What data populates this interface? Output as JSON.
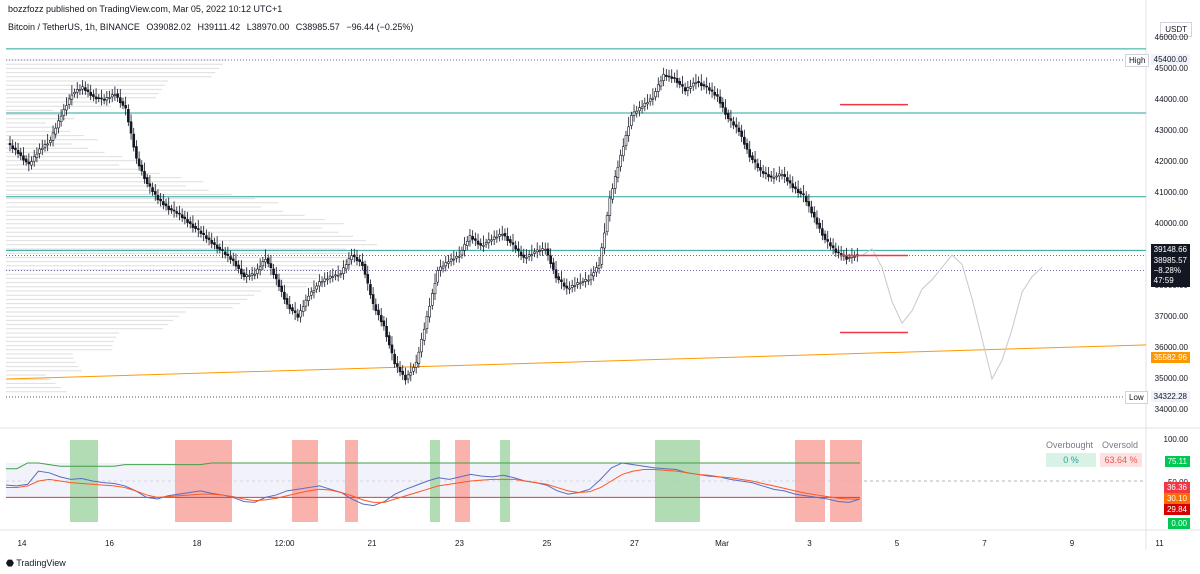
{
  "header": {
    "published": "bozzfozz published on TradingView.com, Mar 05, 2022 10:12 UTC+1"
  },
  "symbol": {
    "name": "Bitcoin / TetherUS, 1h, BINANCE",
    "open": "O39082.02",
    "high": "H39111.42",
    "low": "L38970.00",
    "close": "C38985.57",
    "change": "−96.44 (−0.25%)"
  },
  "currency": "USDT",
  "price_labels": {
    "level_39148": "39148.66",
    "last_price": "38985.57",
    "last_change": "−8.28%",
    "countdown": "47:59",
    "orange_line": "35582.96",
    "high_value": "45400.00",
    "low_value": "34322.28",
    "high_tag": "High",
    "low_tag": "Low"
  },
  "oscillator": {
    "overbought_label": "Overbought",
    "oversold_label": "Oversold",
    "overbought_value": "0 %",
    "oversold_value": "63.64 %",
    "ticks": [
      "100.00",
      "50.00",
      "0.00"
    ],
    "labels": {
      "upper": "75.11",
      "middle_upper": "36.36",
      "middle": "30.10",
      "lower": "29.84",
      "zero": "0.00"
    }
  },
  "colors": {
    "up": "#131722",
    "down": "#131722",
    "hline": "#26a69a",
    "orange": "#ff9800",
    "red": "#f23645",
    "green_fill": "#a5d6a7",
    "red_fill": "#f8a59e"
  },
  "footer": "TradingView",
  "chart_data": {
    "type": "candlestick",
    "title": "Bitcoin / TetherUS, 1h, BINANCE",
    "ylim": [
      34000,
      46000
    ],
    "yticks": [
      34000,
      35000,
      36000,
      37000,
      38000,
      39000,
      40000,
      41000,
      42000,
      43000,
      44000,
      45000,
      46000
    ],
    "xtick_labels": [
      "14",
      "16",
      "18",
      "12:00",
      "21",
      "23",
      "25",
      "27",
      "Mar",
      "3",
      "5",
      "7",
      "9",
      "11"
    ],
    "horizontal_levels": [
      45650,
      43580,
      40880,
      39148.66,
      38500,
      38985.57
    ],
    "projected_levels": [
      43850,
      38985.57,
      36500
    ],
    "trendline": {
      "from": 35000,
      "to": 36100,
      "label": 35582.96
    },
    "price_path": [
      42600,
      42300,
      41900,
      42400,
      42700,
      43500,
      44200,
      44400,
      44100,
      44000,
      44200,
      43700,
      42100,
      41300,
      40800,
      40500,
      40300,
      40000,
      39700,
      39400,
      39100,
      38800,
      38300,
      38400,
      38900,
      38200,
      37400,
      37000,
      37700,
      38100,
      38300,
      38400,
      39000,
      38700,
      37400,
      36700,
      35500,
      35000,
      35500,
      37000,
      38500,
      38800,
      39000,
      39600,
      39300,
      39500,
      39700,
      39300,
      38900,
      39100,
      39200,
      38300,
      37900,
      38100,
      38200,
      38700,
      40800,
      42200,
      43500,
      43800,
      44100,
      44800,
      44700,
      44300,
      44600,
      44400,
      44100,
      43400,
      43000,
      42200,
      41700,
      41500,
      41600,
      41200,
      40900,
      40200,
      39500,
      39100,
      38900,
      38985
    ],
    "osc_upper": [
      65,
      65,
      72,
      72,
      70,
      68,
      68,
      68,
      68,
      68,
      68,
      70,
      70,
      70,
      70,
      70,
      70,
      70,
      70,
      72,
      72,
      72,
      72,
      72,
      72,
      72,
      72,
      72,
      72,
      72,
      72,
      72,
      72,
      72,
      72,
      72,
      72,
      72,
      72,
      72,
      72,
      72,
      72,
      72,
      72,
      72,
      72,
      72,
      72,
      72,
      72,
      72,
      72,
      72,
      72,
      72,
      72,
      72,
      72,
      72,
      72,
      72,
      72,
      72,
      72,
      72,
      72,
      72,
      72,
      72,
      72,
      72,
      72,
      72,
      72,
      72,
      72,
      72,
      72,
      72
    ],
    "osc_lower": [
      30,
      30,
      30,
      30,
      30,
      30,
      30,
      30,
      30,
      30,
      30,
      30,
      30,
      30,
      30,
      30,
      30,
      30,
      30,
      30,
      30,
      30,
      30,
      30,
      30,
      30,
      30,
      30,
      30,
      30,
      30,
      30,
      30,
      30,
      30,
      30,
      30,
      30,
      30,
      30,
      30,
      30,
      30,
      30,
      30,
      30,
      30,
      30,
      30,
      30,
      30,
      30,
      30,
      30,
      30,
      30,
      30,
      30,
      30,
      30,
      30,
      30,
      30,
      30,
      30,
      30,
      30,
      30,
      30,
      30,
      30,
      30,
      30,
      30,
      30,
      30,
      30,
      30,
      30,
      30
    ],
    "osc_fast": [
      45,
      44,
      46,
      62,
      60,
      55,
      52,
      53,
      50,
      48,
      47,
      44,
      38,
      30,
      28,
      32,
      34,
      36,
      38,
      35,
      33,
      30,
      25,
      24,
      30,
      33,
      38,
      40,
      42,
      44,
      40,
      36,
      28,
      22,
      20,
      25,
      34,
      40,
      45,
      50,
      54,
      52,
      55,
      58,
      56,
      55,
      57,
      54,
      50,
      48,
      45,
      38,
      34,
      36,
      40,
      52,
      66,
      72,
      70,
      68,
      66,
      65,
      64,
      60,
      58,
      56,
      55,
      52,
      50,
      48,
      44,
      40,
      38,
      34,
      32,
      30,
      28,
      25,
      24,
      28
    ],
    "osc_slow": [
      42,
      42,
      44,
      50,
      52,
      50,
      48,
      47,
      46,
      45,
      44,
      42,
      38,
      33,
      30,
      31,
      32,
      33,
      34,
      34,
      33,
      31,
      28,
      26,
      27,
      29,
      32,
      35,
      38,
      40,
      39,
      36,
      32,
      27,
      24,
      24,
      28,
      32,
      36,
      40,
      44,
      46,
      48,
      50,
      51,
      52,
      52,
      52,
      50,
      48,
      46,
      42,
      38,
      36,
      37,
      42,
      50,
      58,
      62,
      64,
      64,
      63,
      62,
      60,
      58,
      57,
      55,
      54,
      52,
      50,
      47,
      44,
      41,
      38,
      35,
      33,
      31,
      29,
      28,
      28
    ]
  }
}
